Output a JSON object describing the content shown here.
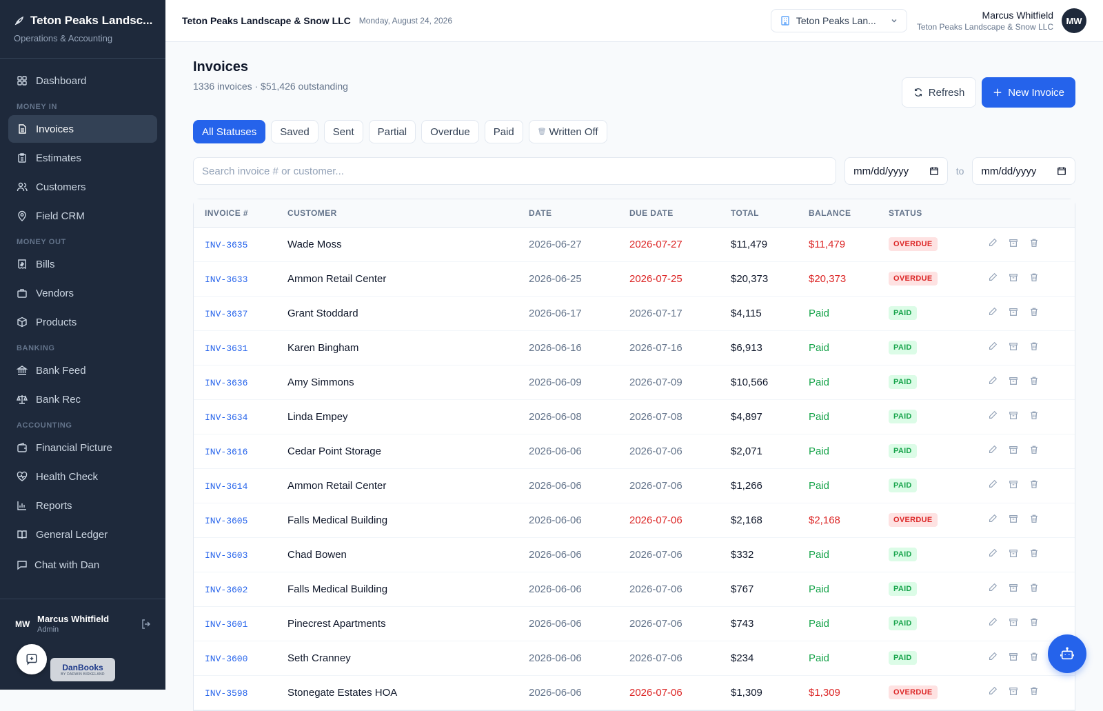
{
  "sidebar": {
    "brand_title": "Teton Peaks Landsc...",
    "brand_sub": "Operations & Accounting",
    "sections": {
      "money_in": "MONEY IN",
      "money_out": "MONEY OUT",
      "banking": "BANKING",
      "accounting": "ACCOUNTING"
    },
    "items": {
      "dashboard": "Dashboard",
      "invoices": "Invoices",
      "estimates": "Estimates",
      "customers": "Customers",
      "field_crm": "Field CRM",
      "bills": "Bills",
      "vendors": "Vendors",
      "products": "Products",
      "bank_feed": "Bank Feed",
      "bank_rec": "Bank Rec",
      "financial_picture": "Financial Picture",
      "health_check": "Health Check",
      "reports": "Reports",
      "general_ledger": "General Ledger",
      "chat": "Chat with Dan"
    },
    "user": {
      "initials": "MW",
      "name": "Marcus Whitfield",
      "role": "Admin"
    },
    "badge": {
      "name": "DanBooks",
      "tagline": "BY DARWIN BIRKELAND"
    }
  },
  "topbar": {
    "company": "Teton Peaks Landscape & Snow LLC",
    "date": "Monday, August 24, 2026",
    "company_select": "Teton Peaks Lan...",
    "user_name": "Marcus Whitfield",
    "user_company": "Teton Peaks Landscape & Snow LLC",
    "user_initials": "MW"
  },
  "page": {
    "title": "Invoices",
    "subtitle": "1336 invoices · $51,426 outstanding",
    "refresh_label": "Refresh",
    "new_label": "New Invoice"
  },
  "filters": {
    "all": "All Statuses",
    "saved": "Saved",
    "sent": "Sent",
    "partial": "Partial",
    "overdue": "Overdue",
    "paid": "Paid",
    "written_off": "Written Off"
  },
  "search": {
    "placeholder": "Search invoice # or customer...",
    "date_from": "mm/dd/yyyy",
    "to_label": "to",
    "date_to": "mm/dd/yyyy"
  },
  "table": {
    "headers": {
      "invoice": "INVOICE #",
      "customer": "CUSTOMER",
      "date": "DATE",
      "due_date": "DUE DATE",
      "total": "TOTAL",
      "balance": "BALANCE",
      "status": "STATUS"
    },
    "rows": [
      {
        "invoice": "INV-3635",
        "customer": "Wade Moss",
        "date": "2026-06-27",
        "due": "2026-07-27",
        "total": "$11,479",
        "balance": "$11,479",
        "status": "OVERDUE"
      },
      {
        "invoice": "INV-3633",
        "customer": "Ammon Retail Center",
        "date": "2026-06-25",
        "due": "2026-07-25",
        "total": "$20,373",
        "balance": "$20,373",
        "status": "OVERDUE"
      },
      {
        "invoice": "INV-3637",
        "customer": "Grant Stoddard",
        "date": "2026-06-17",
        "due": "2026-07-17",
        "total": "$4,115",
        "balance": "Paid",
        "status": "PAID"
      },
      {
        "invoice": "INV-3631",
        "customer": "Karen Bingham",
        "date": "2026-06-16",
        "due": "2026-07-16",
        "total": "$6,913",
        "balance": "Paid",
        "status": "PAID"
      },
      {
        "invoice": "INV-3636",
        "customer": "Amy Simmons",
        "date": "2026-06-09",
        "due": "2026-07-09",
        "total": "$10,566",
        "balance": "Paid",
        "status": "PAID"
      },
      {
        "invoice": "INV-3634",
        "customer": "Linda Empey",
        "date": "2026-06-08",
        "due": "2026-07-08",
        "total": "$4,897",
        "balance": "Paid",
        "status": "PAID"
      },
      {
        "invoice": "INV-3616",
        "customer": "Cedar Point Storage",
        "date": "2026-06-06",
        "due": "2026-07-06",
        "total": "$2,071",
        "balance": "Paid",
        "status": "PAID"
      },
      {
        "invoice": "INV-3614",
        "customer": "Ammon Retail Center",
        "date": "2026-06-06",
        "due": "2026-07-06",
        "total": "$1,266",
        "balance": "Paid",
        "status": "PAID"
      },
      {
        "invoice": "INV-3605",
        "customer": "Falls Medical Building",
        "date": "2026-06-06",
        "due": "2026-07-06",
        "total": "$2,168",
        "balance": "$2,168",
        "status": "OVERDUE"
      },
      {
        "invoice": "INV-3603",
        "customer": "Chad Bowen",
        "date": "2026-06-06",
        "due": "2026-07-06",
        "total": "$332",
        "balance": "Paid",
        "status": "PAID"
      },
      {
        "invoice": "INV-3602",
        "customer": "Falls Medical Building",
        "date": "2026-06-06",
        "due": "2026-07-06",
        "total": "$767",
        "balance": "Paid",
        "status": "PAID"
      },
      {
        "invoice": "INV-3601",
        "customer": "Pinecrest Apartments",
        "date": "2026-06-06",
        "due": "2026-07-06",
        "total": "$743",
        "balance": "Paid",
        "status": "PAID"
      },
      {
        "invoice": "INV-3600",
        "customer": "Seth Cranney",
        "date": "2026-06-06",
        "due": "2026-07-06",
        "total": "$234",
        "balance": "Paid",
        "status": "PAID"
      },
      {
        "invoice": "INV-3598",
        "customer": "Stonegate Estates HOA",
        "date": "2026-06-06",
        "due": "2026-07-06",
        "total": "$1,309",
        "balance": "$1,309",
        "status": "OVERDUE"
      }
    ]
  },
  "colors": {
    "sidebar_bg": "#1e293b",
    "accent": "#2563eb",
    "overdue": "#dc2626",
    "paid": "#16a34a"
  }
}
